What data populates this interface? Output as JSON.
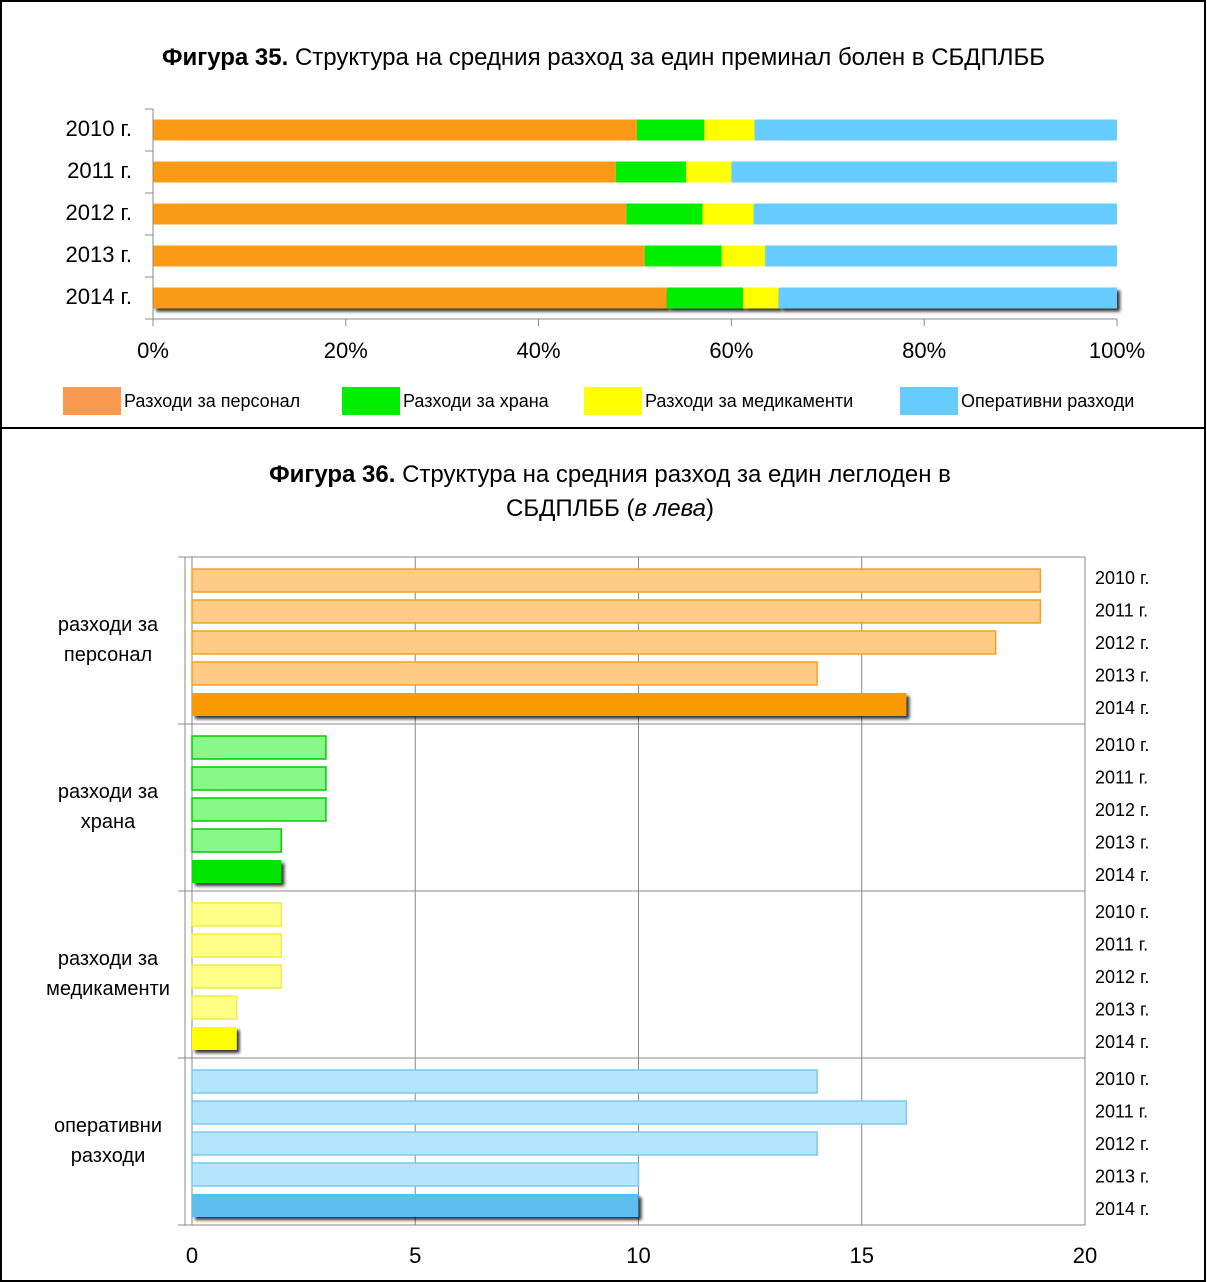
{
  "chart_data": [
    {
      "type": "stacked-bar-horizontal",
      "title_parts": [
        {
          "text": "Фигура 35.",
          "bold": true
        },
        {
          "text": " Структура на средния разход за един преминал болен в СБДПЛББ"
        }
      ],
      "categories": [
        "2010 г.",
        "2011 г.",
        "2012 г.",
        "2013 г.",
        "2014 г."
      ],
      "series": [
        {
          "name": "Разходи за персонал",
          "color": "#fb9a14",
          "legend_color": "#f79a4f",
          "values": [
            50.2,
            48.0,
            49.1,
            51.0,
            53.3
          ]
        },
        {
          "name": "Разходи за храна",
          "color": "#00ee00",
          "legend_color": "#00ee00",
          "values": [
            7.0,
            7.3,
            7.9,
            8.0,
            7.9
          ]
        },
        {
          "name": "Разходи за медикаменти",
          "color": "#ffff00",
          "legend_color": "#ffff00",
          "values": [
            5.2,
            4.7,
            5.3,
            4.5,
            3.7
          ]
        },
        {
          "name": "Оперативни разходи",
          "color": "#66ccff",
          "legend_color": "#66ccff",
          "values": [
            37.6,
            40.0,
            37.7,
            36.5,
            35.1
          ]
        }
      ],
      "xlim": [
        0,
        100
      ],
      "xticks": [
        {
          "value": 0,
          "label": "0%"
        },
        {
          "value": 20,
          "label": "20%"
        },
        {
          "value": 40,
          "label": "40%"
        },
        {
          "value": 60,
          "label": "60%"
        },
        {
          "value": 80,
          "label": "80%"
        },
        {
          "value": 100,
          "label": "100%"
        }
      ],
      "legend": "bottom"
    },
    {
      "type": "grouped-bar-horizontal",
      "title_parts": [
        {
          "text": "Фигура 36.",
          "bold": true
        },
        {
          "text": " Структура на средния разход за един леглоден в СБДПЛББ ("
        },
        {
          "text": "в лева",
          "italic": true
        },
        {
          "text": ")"
        }
      ],
      "categories": [
        "разходи за персонал",
        "разходи за храна",
        "разходи за медикаменти",
        "оперативни разходи"
      ],
      "colors": [
        "#ffcc88",
        "#88f888",
        "#ffff88",
        "#b3e5fc"
      ],
      "stroke_colors": [
        "#f7a020",
        "#00cc00",
        "#eeee44",
        "#7cc8ee"
      ],
      "strong_colors": [
        "#f99a00",
        "#00e600",
        "#ffff00",
        "#5bbdee"
      ],
      "series": [
        {
          "name": "2010 г.",
          "values": [
            19,
            3,
            2,
            14
          ]
        },
        {
          "name": "2011 г.",
          "values": [
            19,
            3,
            2,
            16
          ]
        },
        {
          "name": "2012 г.",
          "values": [
            18,
            3,
            2,
            14
          ]
        },
        {
          "name": "2013 г.",
          "values": [
            14,
            2,
            1,
            10
          ]
        },
        {
          "name": "2014 г.",
          "values": [
            16,
            2,
            1,
            10
          ]
        }
      ],
      "xlim": [
        0,
        20
      ],
      "xticks": [
        0,
        5,
        10,
        15,
        20
      ],
      "grid": true
    }
  ]
}
